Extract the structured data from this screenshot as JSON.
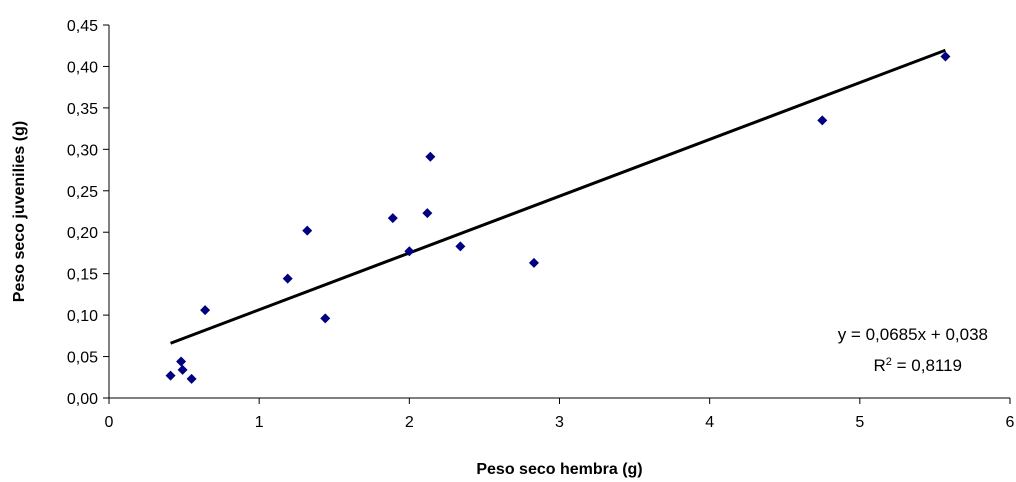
{
  "chart_data": {
    "type": "scatter",
    "xlabel": "Peso seco hembra (g)",
    "ylabel": "Peso seco juvenilies (g)",
    "xlim": [
      0,
      6
    ],
    "ylim": [
      0,
      0.45
    ],
    "xticks": [
      0,
      1,
      2,
      3,
      4,
      5,
      6
    ],
    "yticks": [
      0,
      0.05,
      0.1,
      0.15,
      0.2,
      0.25,
      0.3,
      0.35,
      0.4,
      0.45
    ],
    "xtick_labels": [
      "0",
      "1",
      "2",
      "3",
      "4",
      "5",
      "6"
    ],
    "ytick_labels": [
      "0,00",
      "0,05",
      "0,10",
      "0,15",
      "0,20",
      "0,25",
      "0,30",
      "0,35",
      "0,40",
      "0,45"
    ],
    "grid": false,
    "legend": false,
    "marker_color": "#000080",
    "line_color": "#000000",
    "points": [
      {
        "x": 0.41,
        "y": 0.027
      },
      {
        "x": 0.48,
        "y": 0.044
      },
      {
        "x": 0.49,
        "y": 0.034
      },
      {
        "x": 0.55,
        "y": 0.023
      },
      {
        "x": 0.64,
        "y": 0.106
      },
      {
        "x": 1.19,
        "y": 0.144
      },
      {
        "x": 1.32,
        "y": 0.202
      },
      {
        "x": 1.44,
        "y": 0.096
      },
      {
        "x": 1.89,
        "y": 0.217
      },
      {
        "x": 2.0,
        "y": 0.177
      },
      {
        "x": 2.12,
        "y": 0.223
      },
      {
        "x": 2.14,
        "y": 0.291
      },
      {
        "x": 2.34,
        "y": 0.183
      },
      {
        "x": 2.83,
        "y": 0.163
      },
      {
        "x": 4.75,
        "y": 0.335
      },
      {
        "x": 5.57,
        "y": 0.412
      }
    ],
    "trendline": {
      "slope": 0.0685,
      "intercept": 0.038,
      "x_range": [
        0.41,
        5.57
      ],
      "equation_text": "y = 0,0685x + 0,038",
      "r2_prefix": "R",
      "r2_exponent": "2",
      "r2_value_text": " = 0,8119"
    }
  }
}
